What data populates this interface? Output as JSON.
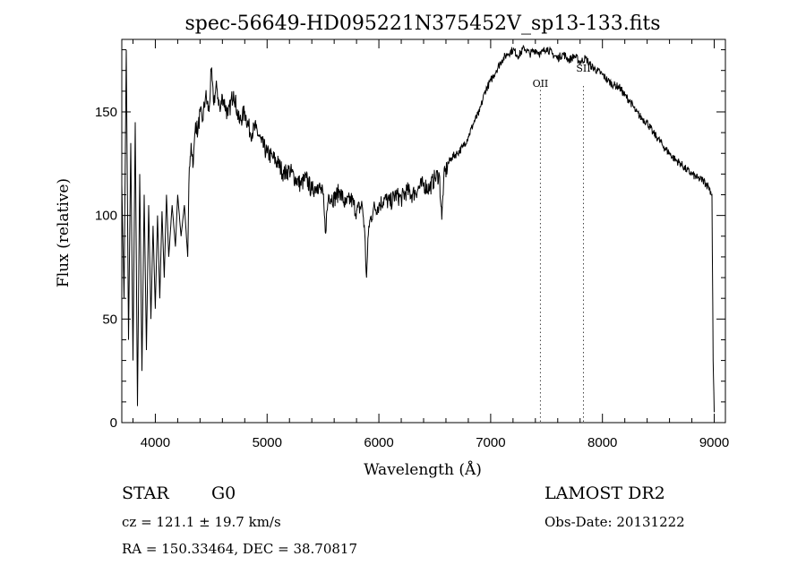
{
  "chart_data": {
    "type": "line",
    "title": "spec-56649-HD095221N375452V_sp13-133.fits",
    "xlabel": "Wavelength (Å)",
    "ylabel": "Flux (relative)",
    "xlim": [
      3700,
      9100
    ],
    "ylim": [
      0,
      185
    ],
    "xticks": [
      4000,
      5000,
      6000,
      7000,
      8000,
      9000
    ],
    "xtick_labels": [
      "4000",
      "5000",
      "6000",
      "7000",
      "8000",
      "9000"
    ],
    "yticks": [
      0,
      50,
      100,
      150
    ],
    "ytick_labels": [
      "0",
      "50",
      "100",
      "150"
    ],
    "grid": false,
    "series": [
      {
        "points": [
          [
            3700,
            115
          ],
          [
            3720,
            60
          ],
          [
            3740,
            180
          ],
          [
            3760,
            40
          ],
          [
            3780,
            135
          ],
          [
            3800,
            30
          ],
          [
            3820,
            145
          ],
          [
            3840,
            8
          ],
          [
            3860,
            120
          ],
          [
            3880,
            25
          ],
          [
            3900,
            110
          ],
          [
            3920,
            35
          ],
          [
            3940,
            105
          ],
          [
            3960,
            50
          ],
          [
            3980,
            95
          ],
          [
            4000,
            55
          ],
          [
            4020,
            100
          ],
          [
            4040,
            60
          ],
          [
            4060,
            102
          ],
          [
            4080,
            70
          ],
          [
            4100,
            110
          ],
          [
            4120,
            80
          ],
          [
            4150,
            105
          ],
          [
            4180,
            85
          ],
          [
            4200,
            110
          ],
          [
            4230,
            90
          ],
          [
            4260,
            105
          ],
          [
            4290,
            80
          ],
          [
            4300,
            115
          ],
          [
            4320,
            135
          ],
          [
            4340,
            125
          ],
          [
            4360,
            145
          ],
          [
            4380,
            140
          ],
          [
            4400,
            150
          ],
          [
            4420,
            145
          ],
          [
            4450,
            158
          ],
          [
            4480,
            150
          ],
          [
            4500,
            170
          ],
          [
            4520,
            155
          ],
          [
            4550,
            162
          ],
          [
            4580,
            150
          ],
          [
            4600,
            158
          ],
          [
            4650,
            148
          ],
          [
            4700,
            160
          ],
          [
            4750,
            145
          ],
          [
            4800,
            150
          ],
          [
            4850,
            140
          ],
          [
            4900,
            142
          ],
          [
            4950,
            135
          ],
          [
            5000,
            130
          ],
          [
            5050,
            128
          ],
          [
            5100,
            125
          ],
          [
            5150,
            120
          ],
          [
            5200,
            122
          ],
          [
            5250,
            118
          ],
          [
            5300,
            115
          ],
          [
            5350,
            118
          ],
          [
            5400,
            112
          ],
          [
            5450,
            115
          ],
          [
            5500,
            110
          ],
          [
            5520,
            92
          ],
          [
            5550,
            110
          ],
          [
            5600,
            108
          ],
          [
            5650,
            112
          ],
          [
            5700,
            105
          ],
          [
            5750,
            108
          ],
          [
            5800,
            102
          ],
          [
            5850,
            105
          ],
          [
            5870,
            95
          ],
          [
            5890,
            70
          ],
          [
            5910,
            95
          ],
          [
            5950,
            103
          ],
          [
            6000,
            105
          ],
          [
            6050,
            108
          ],
          [
            6100,
            106
          ],
          [
            6150,
            110
          ],
          [
            6200,
            108
          ],
          [
            6250,
            112
          ],
          [
            6300,
            110
          ],
          [
            6350,
            113
          ],
          [
            6400,
            115
          ],
          [
            6450,
            113
          ],
          [
            6500,
            118
          ],
          [
            6540,
            120
          ],
          [
            6563,
            98
          ],
          [
            6580,
            118
          ],
          [
            6620,
            125
          ],
          [
            6650,
            128
          ],
          [
            6700,
            130
          ],
          [
            6750,
            133
          ],
          [
            6800,
            138
          ],
          [
            6850,
            145
          ],
          [
            6900,
            150
          ],
          [
            6950,
            160
          ],
          [
            7000,
            165
          ],
          [
            7050,
            170
          ],
          [
            7100,
            175
          ],
          [
            7150,
            178
          ],
          [
            7200,
            180
          ],
          [
            7250,
            177
          ],
          [
            7300,
            181
          ],
          [
            7350,
            178
          ],
          [
            7400,
            180
          ],
          [
            7450,
            178
          ],
          [
            7500,
            181
          ],
          [
            7550,
            178
          ],
          [
            7600,
            176
          ],
          [
            7650,
            178
          ],
          [
            7700,
            175
          ],
          [
            7750,
            177
          ],
          [
            7800,
            174
          ],
          [
            7850,
            176
          ],
          [
            7900,
            172
          ],
          [
            7950,
            170
          ],
          [
            8000,
            168
          ],
          [
            8050,
            165
          ],
          [
            8100,
            163
          ],
          [
            8150,
            162
          ],
          [
            8200,
            158
          ],
          [
            8250,
            155
          ],
          [
            8300,
            150
          ],
          [
            8350,
            147
          ],
          [
            8400,
            145
          ],
          [
            8450,
            140
          ],
          [
            8500,
            137
          ],
          [
            8550,
            133
          ],
          [
            8600,
            130
          ],
          [
            8650,
            127
          ],
          [
            8700,
            125
          ],
          [
            8750,
            122
          ],
          [
            8800,
            120
          ],
          [
            8850,
            118
          ],
          [
            8900,
            117
          ],
          [
            8950,
            114
          ],
          [
            8980,
            110
          ],
          [
            8990,
            30
          ],
          [
            9000,
            5
          ]
        ]
      }
    ],
    "line_markers": [
      {
        "label": "OII",
        "x": 7445
      },
      {
        "label": "SII",
        "x": 7830
      }
    ]
  },
  "info": {
    "object_class": "STAR",
    "subclass": "G0",
    "survey": "LAMOST DR2",
    "redshift": "cz = 121.1 ± 19.7 km/s",
    "obs_date": "Obs-Date: 20131222",
    "coords": "RA = 150.33464, DEC =  38.70817"
  }
}
